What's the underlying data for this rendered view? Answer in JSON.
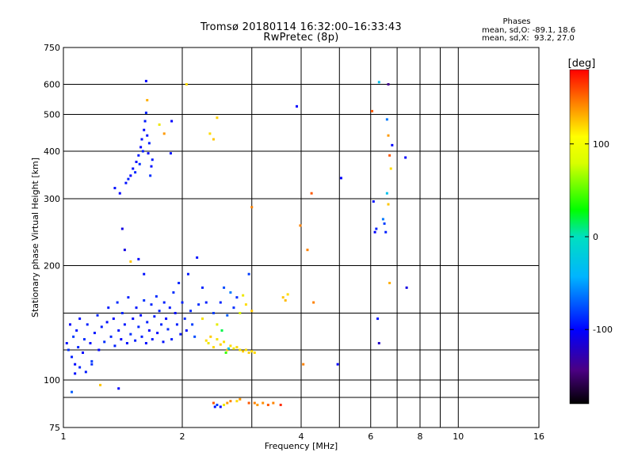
{
  "header": {
    "title_line1": "Tromsø 20180114 16:32:00–16:33:43",
    "title_line2": "RwPretec (8p)",
    "stats_title": "Phases",
    "stats_o": "mean, sd,O: -89.1, 18.6",
    "stats_x": "mean, sd,X:  93.2, 27.0"
  },
  "colorbar": {
    "label": "[deg]",
    "ticks": [
      {
        "value": 100,
        "label": "100"
      },
      {
        "value": 0,
        "label": "0"
      },
      {
        "value": -100,
        "label": "-100"
      }
    ],
    "range": [
      -180,
      180
    ]
  },
  "chart_data": {
    "type": "scatter",
    "title": "Tromsø 20180114 16:32:00–16:33:43",
    "subtitle": "RwPretec (8p)",
    "xlabel": "Frequency [MHz]",
    "ylabel": "Stationary phase Virtual Height [km]",
    "x_scale": "log",
    "y_scale": "log",
    "xlim": [
      1,
      16
    ],
    "ylim": [
      75,
      750
    ],
    "x_ticks": [
      {
        "value": 1,
        "label": "1"
      },
      {
        "value": 2,
        "label": "2"
      },
      {
        "value": 4,
        "label": "4"
      },
      {
        "value": 6,
        "label": "6"
      },
      {
        "value": 8,
        "label": "8"
      },
      {
        "value": 10,
        "label": "10"
      },
      {
        "value": 16,
        "label": "16"
      }
    ],
    "x_grid": [
      1,
      2,
      3,
      4,
      5,
      6,
      7,
      8,
      9,
      10,
      16
    ],
    "y_ticks": [
      {
        "value": 75,
        "label": "75"
      },
      {
        "value": 100,
        "label": "100"
      },
      {
        "value": 200,
        "label": "200"
      },
      {
        "value": 300,
        "label": "300"
      },
      {
        "value": 400,
        "label": "400"
      },
      {
        "value": 500,
        "label": "500"
      },
      {
        "value": 600,
        "label": "600"
      },
      {
        "value": 750,
        "label": "750"
      }
    ],
    "y_grid": [
      90,
      100,
      120,
      150,
      200,
      300,
      400,
      500,
      600
    ],
    "grid": true,
    "colorbar_label": "[deg]",
    "points_note": "approximate echo points: frequency MHz, virtual height km, phase deg",
    "points": [
      [
        1.02,
        125,
        -95
      ],
      [
        1.03,
        120,
        -85
      ],
      [
        1.04,
        140,
        -100
      ],
      [
        1.05,
        115,
        -90
      ],
      [
        1.06,
        130,
        -80
      ],
      [
        1.07,
        110,
        -98
      ],
      [
        1.08,
        135,
        -92
      ],
      [
        1.09,
        122,
        -88
      ],
      [
        1.1,
        145,
        -95
      ],
      [
        1.12,
        118,
        -100
      ],
      [
        1.13,
        128,
        -85
      ],
      [
        1.15,
        140,
        -90
      ],
      [
        1.17,
        125,
        -97
      ],
      [
        1.18,
        112,
        -80
      ],
      [
        1.2,
        133,
        -93
      ],
      [
        1.22,
        148,
        -88
      ],
      [
        1.23,
        120,
        -99
      ],
      [
        1.25,
        138,
        -90
      ],
      [
        1.27,
        126,
        -85
      ],
      [
        1.29,
        142,
        -96
      ],
      [
        1.3,
        155,
        -92
      ],
      [
        1.32,
        130,
        -88
      ],
      [
        1.34,
        145,
        -99
      ],
      [
        1.35,
        123,
        -90
      ],
      [
        1.37,
        160,
        -86
      ],
      [
        1.38,
        135,
        -94
      ],
      [
        1.4,
        128,
        -100
      ],
      [
        1.41,
        150,
        -88
      ],
      [
        1.43,
        140,
        -92
      ],
      [
        1.45,
        125,
        -95
      ],
      [
        1.46,
        165,
        -90
      ],
      [
        1.48,
        132,
        -85
      ],
      [
        1.5,
        145,
        -98
      ],
      [
        1.52,
        127,
        -90
      ],
      [
        1.53,
        155,
        -93
      ],
      [
        1.55,
        138,
        -88
      ],
      [
        1.57,
        148,
        -96
      ],
      [
        1.58,
        130,
        -90
      ],
      [
        1.6,
        162,
        -84
      ],
      [
        1.62,
        125,
        -97
      ],
      [
        1.63,
        142,
        -90
      ],
      [
        1.65,
        135,
        -100
      ],
      [
        1.67,
        158,
        -88
      ],
      [
        1.68,
        128,
        -94
      ],
      [
        1.7,
        147,
        -90
      ],
      [
        1.72,
        166,
        -86
      ],
      [
        1.73,
        133,
        -98
      ],
      [
        1.75,
        152,
        -92
      ],
      [
        1.77,
        140,
        -88
      ],
      [
        1.79,
        126,
        -95
      ],
      [
        1.8,
        160,
        -90
      ],
      [
        1.82,
        145,
        -100
      ],
      [
        1.84,
        136,
        -87
      ],
      [
        1.86,
        155,
        -93
      ],
      [
        1.88,
        128,
        -90
      ],
      [
        1.9,
        170,
        -85
      ],
      [
        1.92,
        150,
        -96
      ],
      [
        1.94,
        140,
        -90
      ],
      [
        1.96,
        180,
        -88
      ],
      [
        1.98,
        132,
        -94
      ],
      [
        2.0,
        160,
        -90
      ],
      [
        2.03,
        145,
        -86
      ],
      [
        2.05,
        135,
        -98
      ],
      [
        2.07,
        190,
        -92
      ],
      [
        2.1,
        152,
        -88
      ],
      [
        2.12,
        140,
        -80
      ],
      [
        2.15,
        130,
        -75
      ],
      [
        2.18,
        210,
        -95
      ],
      [
        2.2,
        158,
        -85
      ],
      [
        2.25,
        175,
        -88
      ],
      [
        1.07,
        104,
        -95
      ],
      [
        1.1,
        108,
        -88
      ],
      [
        1.14,
        105,
        -92
      ],
      [
        1.18,
        110,
        -85
      ],
      [
        1.05,
        93,
        -70
      ],
      [
        1.24,
        97,
        120
      ],
      [
        1.38,
        95,
        -100
      ],
      [
        1.35,
        320,
        -95
      ],
      [
        1.39,
        310,
        -100
      ],
      [
        1.41,
        250,
        -110
      ],
      [
        1.44,
        330,
        -95
      ],
      [
        1.46,
        338,
        -90
      ],
      [
        1.48,
        345,
        -100
      ],
      [
        1.5,
        360,
        -95
      ],
      [
        1.52,
        352,
        -88
      ],
      [
        1.53,
        375,
        -98
      ],
      [
        1.55,
        390,
        -92
      ],
      [
        1.56,
        370,
        -85
      ],
      [
        1.57,
        410,
        -100
      ],
      [
        1.58,
        430,
        -95
      ],
      [
        1.59,
        400,
        -90
      ],
      [
        1.6,
        455,
        -98
      ],
      [
        1.61,
        480,
        -92
      ],
      [
        1.62,
        505,
        -88
      ],
      [
        1.63,
        440,
        -95
      ],
      [
        1.64,
        395,
        -100
      ],
      [
        1.65,
        420,
        -90
      ],
      [
        1.66,
        345,
        -85
      ],
      [
        1.67,
        365,
        -95
      ],
      [
        1.68,
        380,
        -92
      ],
      [
        1.62,
        612,
        -100
      ],
      [
        1.63,
        545,
        130
      ],
      [
        1.75,
        470,
        100
      ],
      [
        1.8,
        445,
        140
      ],
      [
        1.88,
        480,
        -100
      ],
      [
        1.87,
        395,
        -95
      ],
      [
        1.43,
        220,
        -110
      ],
      [
        1.48,
        205,
        120
      ],
      [
        1.55,
        208,
        -98
      ],
      [
        1.6,
        190,
        -95
      ],
      [
        2.05,
        600,
        110
      ],
      [
        2.35,
        445,
        110
      ],
      [
        2.4,
        430,
        120
      ],
      [
        2.45,
        490,
        115
      ],
      [
        2.3,
        127,
        110
      ],
      [
        2.33,
        125,
        100
      ],
      [
        2.36,
        130,
        118
      ],
      [
        2.4,
        122,
        112
      ],
      [
        2.45,
        128,
        105
      ],
      [
        2.5,
        124,
        115
      ],
      [
        2.55,
        126,
        108
      ],
      [
        2.6,
        120,
        120
      ],
      [
        2.65,
        123,
        110
      ],
      [
        2.7,
        121,
        100
      ],
      [
        2.75,
        122,
        112
      ],
      [
        2.8,
        120,
        105
      ],
      [
        2.85,
        119,
        118
      ],
      [
        2.9,
        120,
        108
      ],
      [
        2.95,
        118,
        115
      ],
      [
        3.0,
        119,
        110
      ],
      [
        3.05,
        118,
        112
      ],
      [
        2.58,
        118,
        40
      ],
      [
        2.62,
        121,
        -30
      ],
      [
        2.52,
        135,
        15
      ],
      [
        2.4,
        150,
        -80
      ],
      [
        2.5,
        160,
        -88
      ],
      [
        2.6,
        148,
        -70
      ],
      [
        2.7,
        155,
        -85
      ],
      [
        2.8,
        150,
        90
      ],
      [
        2.9,
        158,
        110
      ],
      [
        3.0,
        152,
        120
      ],
      [
        2.95,
        190,
        -80
      ],
      [
        2.65,
        170,
        -60
      ],
      [
        2.75,
        165,
        -85
      ],
      [
        2.85,
        167,
        100
      ],
      [
        2.45,
        140,
        95
      ],
      [
        2.55,
        175,
        -75
      ],
      [
        2.3,
        160,
        -90
      ],
      [
        2.25,
        145,
        105
      ],
      [
        2.4,
        87,
        160
      ],
      [
        2.42,
        85,
        -95
      ],
      [
        2.45,
        86,
        -80
      ],
      [
        2.5,
        85,
        -100
      ],
      [
        2.55,
        86,
        100
      ],
      [
        2.6,
        87,
        140
      ],
      [
        2.65,
        88,
        150
      ],
      [
        2.75,
        88,
        110
      ],
      [
        2.8,
        89,
        140
      ],
      [
        2.95,
        87,
        160
      ],
      [
        3.05,
        87,
        150
      ],
      [
        3.1,
        86,
        140
      ],
      [
        3.2,
        87,
        145
      ],
      [
        3.3,
        86,
        160
      ],
      [
        3.4,
        87,
        150
      ],
      [
        3.55,
        86,
        170
      ],
      [
        3.6,
        165,
        120
      ],
      [
        3.65,
        162,
        125
      ],
      [
        3.7,
        168,
        110
      ],
      [
        3.0,
        285,
        150
      ],
      [
        3.9,
        525,
        -100
      ],
      [
        3.98,
        255,
        150
      ],
      [
        4.05,
        110,
        150
      ],
      [
        4.15,
        220,
        150
      ],
      [
        4.25,
        310,
        160
      ],
      [
        4.3,
        160,
        150
      ],
      [
        5.05,
        340,
        -100
      ],
      [
        4.95,
        110,
        -100
      ],
      [
        6.05,
        510,
        160
      ],
      [
        6.1,
        295,
        -95
      ],
      [
        6.15,
        245,
        -100
      ],
      [
        6.2,
        250,
        -90
      ],
      [
        6.3,
        608,
        -30
      ],
      [
        6.25,
        145,
        -95
      ],
      [
        6.3,
        125,
        -120
      ],
      [
        6.45,
        265,
        -60
      ],
      [
        6.5,
        258,
        -80
      ],
      [
        6.55,
        245,
        -90
      ],
      [
        6.6,
        310,
        -30
      ],
      [
        6.65,
        290,
        120
      ],
      [
        6.7,
        390,
        160
      ],
      [
        6.75,
        360,
        110
      ],
      [
        6.8,
        415,
        -100
      ],
      [
        6.6,
        485,
        -60
      ],
      [
        6.65,
        600,
        -140
      ],
      [
        6.7,
        180,
        130
      ],
      [
        6.65,
        440,
        140
      ],
      [
        7.35,
        385,
        -100
      ],
      [
        7.4,
        175,
        -110
      ]
    ]
  }
}
